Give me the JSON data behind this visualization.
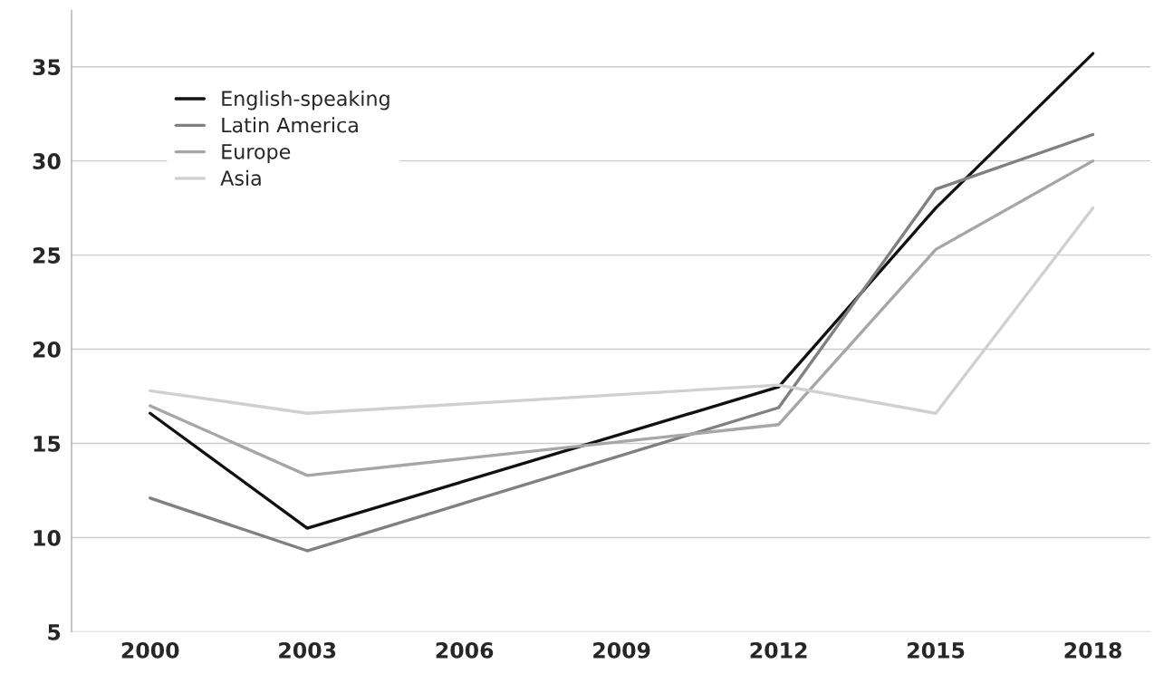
{
  "chart_data": {
    "type": "line",
    "x": [
      2000,
      2003,
      2012,
      2015,
      2018
    ],
    "series": [
      {
        "name": "English-speaking",
        "color": "#111111",
        "values": [
          16.6,
          10.5,
          18.0,
          27.5,
          35.7
        ]
      },
      {
        "name": "Latin America",
        "color": "#808080",
        "values": [
          12.1,
          9.3,
          16.9,
          28.5,
          31.4
        ]
      },
      {
        "name": "Europe",
        "color": "#a6a6a6",
        "values": [
          17.0,
          13.3,
          16.0,
          25.3,
          30.0
        ]
      },
      {
        "name": "Asia",
        "color": "#d0d0d0",
        "values": [
          17.8,
          16.6,
          18.1,
          16.6,
          27.5
        ]
      }
    ],
    "xlim": [
      1998.5,
      2019.1
    ],
    "xticks": [
      2000,
      2003,
      2006,
      2009,
      2012,
      2015,
      2018
    ],
    "ylim": [
      5,
      38
    ],
    "yticks": [
      5,
      10,
      15,
      20,
      25,
      30,
      35
    ],
    "grid": "y",
    "legend": "top left",
    "marker": "none",
    "line_style": "solid"
  }
}
